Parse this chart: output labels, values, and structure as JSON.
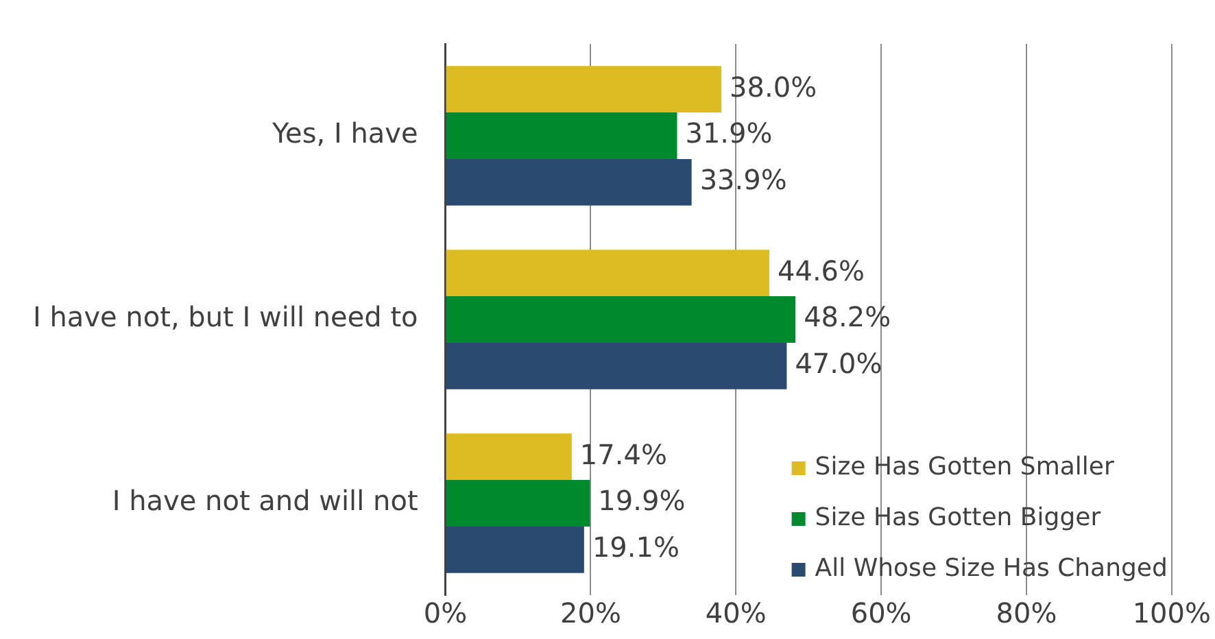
{
  "chart_data": {
    "type": "bar",
    "orientation": "horizontal",
    "categories": [
      "Yes, I have",
      "I have not, but I will need to",
      "I have not and will not"
    ],
    "series": [
      {
        "name": "Size Has Gotten Smaller",
        "color": "#dcbc22",
        "values": [
          38.0,
          44.6,
          17.4
        ]
      },
      {
        "name": "Size Has Gotten Bigger",
        "color": "#008a2e",
        "values": [
          31.9,
          48.2,
          19.9
        ]
      },
      {
        "name": "All Whose Size Has Changed",
        "color": "#2b4a6f",
        "values": [
          33.9,
          47.0,
          19.1
        ]
      }
    ],
    "xlim": [
      0,
      100
    ],
    "xticks": [
      {
        "value": 0,
        "label": "0%"
      },
      {
        "value": 20,
        "label": "20%"
      },
      {
        "value": 40,
        "label": "40%"
      },
      {
        "value": 60,
        "label": "60%"
      },
      {
        "value": 80,
        "label": "80%"
      },
      {
        "value": 100,
        "label": "100%"
      }
    ],
    "value_labels": [
      [
        "38.0%",
        "44.6%",
        "17.4%"
      ],
      [
        "31.9%",
        "48.2%",
        "19.9%"
      ],
      [
        "33.9%",
        "47.0%",
        "19.1%"
      ]
    ],
    "grid": "x",
    "legend": "bottom right",
    "marker": "square"
  }
}
